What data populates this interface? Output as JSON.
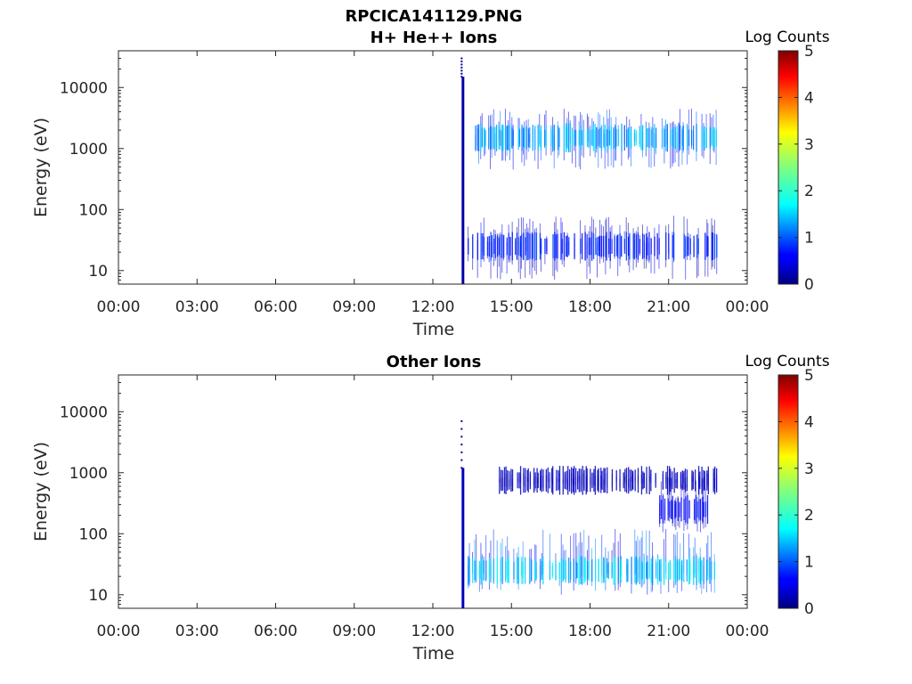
{
  "figure_title": "RPCICA141129.PNG",
  "chart_data": [
    {
      "type": "heatmap",
      "title": "H+ He++ Ions",
      "xlabel": "Time",
      "ylabel": "Energy (eV)",
      "x_tick_labels": [
        "00:00",
        "03:00",
        "06:00",
        "09:00",
        "12:00",
        "15:00",
        "18:00",
        "21:00",
        "00:00"
      ],
      "x_range_hours": [
        0,
        24
      ],
      "y_scale": "log",
      "ylim": [
        6,
        40000
      ],
      "y_ticks": [
        10,
        100,
        1000,
        10000
      ],
      "y_tick_labels": [
        "10",
        "100",
        "1000",
        "10000"
      ],
      "colorbar": {
        "title": "Log Counts",
        "range": [
          0,
          5
        ],
        "tick_labels": [
          "0",
          "1",
          "2",
          "3",
          "4",
          "5"
        ],
        "colormap": "jet"
      },
      "data_coverage_hours": [
        13.15,
        22.85
      ],
      "features": [
        {
          "kind": "vertical_band",
          "time_h": 13.15,
          "energy_range_eV": [
            6,
            15000
          ],
          "log_counts": 0.2
        },
        {
          "kind": "scattered",
          "time_h": 13.1,
          "energy_range_eV": [
            15000,
            30000
          ],
          "log_counts": 0.1
        },
        {
          "kind": "band",
          "time_range_h": [
            13.6,
            22.85
          ],
          "energy_range_eV": [
            450,
            4500
          ],
          "peak_eV": 1500,
          "log_counts_max": 1.8
        },
        {
          "kind": "band",
          "time_range_h": [
            13.3,
            22.85
          ],
          "energy_range_eV": [
            7,
            80
          ],
          "peak_eV": 25,
          "log_counts_max": 1.0
        }
      ]
    },
    {
      "type": "heatmap",
      "title": "Other Ions",
      "xlabel": "Time",
      "ylabel": "Energy (eV)",
      "x_tick_labels": [
        "00:00",
        "03:00",
        "06:00",
        "09:00",
        "12:00",
        "15:00",
        "18:00",
        "21:00",
        "00:00"
      ],
      "x_range_hours": [
        0,
        24
      ],
      "y_scale": "log",
      "ylim": [
        6,
        40000
      ],
      "y_ticks": [
        10,
        100,
        1000,
        10000
      ],
      "y_tick_labels": [
        "10",
        "100",
        "1000",
        "10000"
      ],
      "colorbar": {
        "title": "Log Counts",
        "range": [
          0,
          5
        ],
        "tick_labels": [
          "0",
          "1",
          "2",
          "3",
          "4",
          "5"
        ],
        "colormap": "jet"
      },
      "data_coverage_hours": [
        13.15,
        22.85
      ],
      "features": [
        {
          "kind": "vertical_band",
          "time_h": 13.15,
          "energy_range_eV": [
            6,
            1200
          ],
          "log_counts": 0.3
        },
        {
          "kind": "scattered",
          "time_h": 13.1,
          "energy_range_eV": [
            1200,
            7000
          ],
          "log_counts": 0.1
        },
        {
          "kind": "band",
          "time_range_h": [
            13.3,
            22.85
          ],
          "energy_range_eV": [
            10,
            120
          ],
          "peak_eV": 25,
          "log_counts_max": 2.0
        },
        {
          "kind": "band",
          "time_range_h": [
            14.5,
            22.85
          ],
          "energy_range_eV": [
            500,
            1000
          ],
          "peak_eV": 750,
          "log_counts_max": 0.4
        },
        {
          "kind": "band",
          "time_range_h": [
            20.5,
            22.5
          ],
          "energy_range_eV": [
            100,
            900
          ],
          "peak_eV": 250,
          "log_counts_max": 0.8
        }
      ]
    }
  ]
}
